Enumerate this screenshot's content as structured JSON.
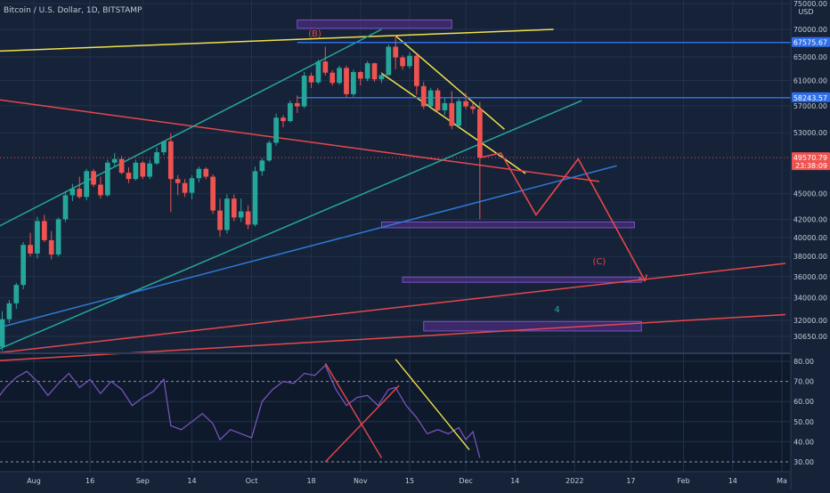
{
  "header": {
    "symbol_title": "Bitcoin / U.S. Dollar, 1D, BITSTAMP",
    "currency": "USD"
  },
  "colors": {
    "background": "#152238",
    "rsi_background": "#0e1a2c",
    "grid": "#22324d",
    "axis_text": "#c6cbd6",
    "candle_up": "#26a69a",
    "candle_down": "#ef5350",
    "rsi_line": "#7e57c2",
    "trend_yellow": "#f2e14a",
    "trend_red": "#e8474c",
    "trend_teal": "#26a69a",
    "trend_blue": "#2e79d6",
    "level_blue": "#2f6fe8",
    "zone_fill": "#5b2f8f",
    "zone_border": "#7a52c9"
  },
  "chart_data": {
    "type": "candlestick",
    "title": "Bitcoin / U.S. Dollar, 1D, BITSTAMP",
    "y_axis_ticks": [
      {
        "value": 75000,
        "label": "75000.00"
      },
      {
        "value": 70000,
        "label": "70000.00"
      },
      {
        "value": 65000,
        "label": "65000.00"
      },
      {
        "value": 61000,
        "label": "61000.00"
      },
      {
        "value": 57000,
        "label": "57000.00"
      },
      {
        "value": 53000,
        "label": "53000.00"
      },
      {
        "value": 45000,
        "label": "45000.00"
      },
      {
        "value": 42000,
        "label": "42000.00"
      },
      {
        "value": 40000,
        "label": "40000.00"
      },
      {
        "value": 38000,
        "label": "38000.00"
      },
      {
        "value": 36000,
        "label": "36000.00"
      },
      {
        "value": 34000,
        "label": "34000.00"
      },
      {
        "value": 32000,
        "label": "32000.00"
      },
      {
        "value": 30650,
        "label": "30650.00"
      }
    ],
    "x_axis_ticks": [
      "Aug",
      "16",
      "Sep",
      "14",
      "Oct",
      "18",
      "Nov",
      "15",
      "Dec",
      "14",
      "2022",
      "17",
      "Feb",
      "14",
      "Ma"
    ],
    "y_scale": "log",
    "price_labels": [
      {
        "value": 67575.67,
        "label": "67575.67",
        "color": "#2f6fe8"
      },
      {
        "value": 58243.57,
        "label": "58243.57",
        "color": "#2f6fe8"
      },
      {
        "value": 49570.79,
        "label": "49570.79",
        "sub": "23:38:09",
        "color": "#ef5350"
      }
    ],
    "horizontal_levels": [
      67575.67,
      58243.57
    ],
    "candles": [
      {
        "date": "2021-07-21",
        "o": 29800,
        "h": 32800,
        "l": 29500,
        "c": 32100
      },
      {
        "date": "2021-07-23",
        "o": 32100,
        "h": 33800,
        "l": 31800,
        "c": 33500
      },
      {
        "date": "2021-07-25",
        "o": 33500,
        "h": 35400,
        "l": 33000,
        "c": 35200
      },
      {
        "date": "2021-07-27",
        "o": 35200,
        "h": 39500,
        "l": 34800,
        "c": 39200
      },
      {
        "date": "2021-07-29",
        "o": 39200,
        "h": 40500,
        "l": 38000,
        "c": 38300
      },
      {
        "date": "2021-07-31",
        "o": 38300,
        "h": 42300,
        "l": 37800,
        "c": 41800
      },
      {
        "date": "2021-08-02",
        "o": 41800,
        "h": 42500,
        "l": 39500,
        "c": 39700
      },
      {
        "date": "2021-08-04",
        "o": 39700,
        "h": 40700,
        "l": 37700,
        "c": 38200
      },
      {
        "date": "2021-08-06",
        "o": 38200,
        "h": 42200,
        "l": 38000,
        "c": 42000
      },
      {
        "date": "2021-08-08",
        "o": 42000,
        "h": 45300,
        "l": 41700,
        "c": 44800
      },
      {
        "date": "2021-08-10",
        "o": 44800,
        "h": 46200,
        "l": 44100,
        "c": 45600
      },
      {
        "date": "2021-08-12",
        "o": 45600,
        "h": 47100,
        "l": 44400,
        "c": 44600
      },
      {
        "date": "2021-08-14",
        "o": 44600,
        "h": 48100,
        "l": 44200,
        "c": 47800
      },
      {
        "date": "2021-08-16",
        "o": 47800,
        "h": 48100,
        "l": 45800,
        "c": 46100
      },
      {
        "date": "2021-08-18",
        "o": 46100,
        "h": 47100,
        "l": 44400,
        "c": 44800
      },
      {
        "date": "2021-08-20",
        "o": 44800,
        "h": 49300,
        "l": 44600,
        "c": 48900
      },
      {
        "date": "2021-08-22",
        "o": 48900,
        "h": 50200,
        "l": 48300,
        "c": 49400
      },
      {
        "date": "2021-08-24",
        "o": 49400,
        "h": 49800,
        "l": 47400,
        "c": 47600
      },
      {
        "date": "2021-08-26",
        "o": 47600,
        "h": 48300,
        "l": 46300,
        "c": 46800
      },
      {
        "date": "2021-08-28",
        "o": 46800,
        "h": 49300,
        "l": 46600,
        "c": 48900
      },
      {
        "date": "2021-08-30",
        "o": 48900,
        "h": 49100,
        "l": 46800,
        "c": 47100
      },
      {
        "date": "2021-09-01",
        "o": 47100,
        "h": 49300,
        "l": 46800,
        "c": 48800
      },
      {
        "date": "2021-09-03",
        "o": 48800,
        "h": 51000,
        "l": 48600,
        "c": 50300
      },
      {
        "date": "2021-09-05",
        "o": 50300,
        "h": 51900,
        "l": 49900,
        "c": 51800
      },
      {
        "date": "2021-09-07",
        "o": 51800,
        "h": 52900,
        "l": 42800,
        "c": 46800
      },
      {
        "date": "2021-09-09",
        "o": 46800,
        "h": 47300,
        "l": 44800,
        "c": 46300
      },
      {
        "date": "2021-09-11",
        "o": 46300,
        "h": 46800,
        "l": 44600,
        "c": 45100
      },
      {
        "date": "2021-09-13",
        "o": 45100,
        "h": 47300,
        "l": 44300,
        "c": 46900
      },
      {
        "date": "2021-09-15",
        "o": 46900,
        "h": 48400,
        "l": 46400,
        "c": 48100
      },
      {
        "date": "2021-09-17",
        "o": 48100,
        "h": 48300,
        "l": 46800,
        "c": 47100
      },
      {
        "date": "2021-09-19",
        "o": 47100,
        "h": 47400,
        "l": 42600,
        "c": 43000
      },
      {
        "date": "2021-09-21",
        "o": 43000,
        "h": 44400,
        "l": 40100,
        "c": 40800
      },
      {
        "date": "2021-09-23",
        "o": 40800,
        "h": 44900,
        "l": 40400,
        "c": 44400
      },
      {
        "date": "2021-09-25",
        "o": 44400,
        "h": 44900,
        "l": 41800,
        "c": 42200
      },
      {
        "date": "2021-09-27",
        "o": 42200,
        "h": 44400,
        "l": 41700,
        "c": 42900
      },
      {
        "date": "2021-09-29",
        "o": 42900,
        "h": 43600,
        "l": 40900,
        "c": 41400
      },
      {
        "date": "2021-10-01",
        "o": 41400,
        "h": 48400,
        "l": 41200,
        "c": 47800
      },
      {
        "date": "2021-10-03",
        "o": 47800,
        "h": 49500,
        "l": 47200,
        "c": 49200
      },
      {
        "date": "2021-10-05",
        "o": 49200,
        "h": 51900,
        "l": 49000,
        "c": 51600
      },
      {
        "date": "2021-10-07",
        "o": 51600,
        "h": 55800,
        "l": 51200,
        "c": 55200
      },
      {
        "date": "2021-10-09",
        "o": 55200,
        "h": 55600,
        "l": 53800,
        "c": 54700
      },
      {
        "date": "2021-10-11",
        "o": 54700,
        "h": 57800,
        "l": 54500,
        "c": 57400
      },
      {
        "date": "2021-10-13",
        "o": 57400,
        "h": 58600,
        "l": 55900,
        "c": 56900
      },
      {
        "date": "2021-10-15",
        "o": 56900,
        "h": 62400,
        "l": 56600,
        "c": 61800
      },
      {
        "date": "2021-10-17",
        "o": 61800,
        "h": 62300,
        "l": 59800,
        "c": 60700
      },
      {
        "date": "2021-10-19",
        "o": 60700,
        "h": 64500,
        "l": 60400,
        "c": 64200
      },
      {
        "date": "2021-10-21",
        "o": 64200,
        "h": 66800,
        "l": 61800,
        "c": 62300
      },
      {
        "date": "2021-10-23",
        "o": 62300,
        "h": 62700,
        "l": 60200,
        "c": 60600
      },
      {
        "date": "2021-10-25",
        "o": 60600,
        "h": 63500,
        "l": 60300,
        "c": 63100
      },
      {
        "date": "2021-10-27",
        "o": 63100,
        "h": 63500,
        "l": 58300,
        "c": 58800
      },
      {
        "date": "2021-10-29",
        "o": 58800,
        "h": 62800,
        "l": 58400,
        "c": 62400
      },
      {
        "date": "2021-10-31",
        "o": 62400,
        "h": 62600,
        "l": 60200,
        "c": 61300
      },
      {
        "date": "2021-11-02",
        "o": 61300,
        "h": 64300,
        "l": 60900,
        "c": 63900
      },
      {
        "date": "2021-11-04",
        "o": 63900,
        "h": 64000,
        "l": 60800,
        "c": 61200
      },
      {
        "date": "2021-11-06",
        "o": 61200,
        "h": 62400,
        "l": 60600,
        "c": 61900
      },
      {
        "date": "2021-11-08",
        "o": 61900,
        "h": 67200,
        "l": 61800,
        "c": 66800
      },
      {
        "date": "2021-11-10",
        "o": 66800,
        "h": 69000,
        "l": 62900,
        "c": 64900
      },
      {
        "date": "2021-11-12",
        "o": 64900,
        "h": 65300,
        "l": 62800,
        "c": 63400
      },
      {
        "date": "2021-11-14",
        "o": 63400,
        "h": 65800,
        "l": 63000,
        "c": 65200
      },
      {
        "date": "2021-11-16",
        "o": 65200,
        "h": 65500,
        "l": 58700,
        "c": 60100
      },
      {
        "date": "2021-11-18",
        "o": 60100,
        "h": 60800,
        "l": 56500,
        "c": 56900
      },
      {
        "date": "2021-11-20",
        "o": 56900,
        "h": 59800,
        "l": 56800,
        "c": 59400
      },
      {
        "date": "2021-11-22",
        "o": 59400,
        "h": 59800,
        "l": 55900,
        "c": 56300
      },
      {
        "date": "2021-11-24",
        "o": 56300,
        "h": 58200,
        "l": 55600,
        "c": 57400
      },
      {
        "date": "2021-11-26",
        "o": 57400,
        "h": 59300,
        "l": 53500,
        "c": 54000
      },
      {
        "date": "2021-11-28",
        "o": 54000,
        "h": 58100,
        "l": 53800,
        "c": 57700
      },
      {
        "date": "2021-11-30",
        "o": 57700,
        "h": 59000,
        "l": 56500,
        "c": 56900
      },
      {
        "date": "2021-12-02",
        "o": 56900,
        "h": 57400,
        "l": 55800,
        "c": 56500
      },
      {
        "date": "2021-12-04",
        "o": 56500,
        "h": 57600,
        "l": 42000,
        "c": 49570.79
      }
    ],
    "overlays": {
      "trend_lines": [
        {
          "id": "yellow-top",
          "color": "#f2e14a",
          "from": [
            "2021-07-19",
            66000
          ],
          "to": [
            "2021-12-25",
            70000
          ]
        },
        {
          "id": "yellow-channel-upper",
          "color": "#f2e14a",
          "from": [
            "2021-11-10",
            68800
          ],
          "to": [
            "2021-12-11",
            53500
          ]
        },
        {
          "id": "yellow-channel-lower",
          "color": "#f2e14a",
          "from": [
            "2021-11-06",
            62200
          ],
          "to": [
            "2021-12-17",
            47500
          ]
        },
        {
          "id": "red-downtrend",
          "color": "#e8474c",
          "from": [
            "2021-07-19",
            58000
          ],
          "to": [
            "2022-01-07",
            46500
          ]
        },
        {
          "id": "red-long-upper",
          "color": "#e8474c",
          "from": [
            "2021-07-19",
            29300
          ],
          "to": [
            "2022-03-01",
            37300
          ]
        },
        {
          "id": "red-long-lower",
          "color": "#e8474c",
          "from": [
            "2021-07-19",
            28700
          ],
          "to": [
            "2022-03-01",
            32500
          ]
        },
        {
          "id": "teal-upper",
          "color": "#26a69a",
          "from": [
            "2021-07-19",
            41000
          ],
          "to": [
            "2021-11-06",
            70000
          ]
        },
        {
          "id": "teal-lower",
          "color": "#26a69a",
          "from": [
            "2021-07-19",
            29500
          ],
          "to": [
            "2022-01-02",
            57800
          ]
        },
        {
          "id": "blue-trend",
          "color": "#2e79d6",
          "from": [
            "2021-07-19",
            31300
          ],
          "to": [
            "2022-01-12",
            48500
          ]
        }
      ],
      "projection_path": {
        "color": "#e8474c",
        "points": [
          [
            "2021-12-04",
            49570.79
          ],
          [
            "2021-12-10",
            50200
          ],
          [
            "2021-12-20",
            42500
          ],
          [
            "2022-01-01",
            49400
          ],
          [
            "2022-01-20",
            35600
          ]
        ]
      },
      "zones": [
        {
          "id": "zone-top",
          "from_date": "2021-10-13",
          "to_date": "2021-11-26",
          "top": 71800,
          "bottom": 70200
        },
        {
          "id": "zone-41k",
          "from_date": "2021-11-06",
          "to_date": "2022-01-17",
          "top": 41700,
          "bottom": 41050
        },
        {
          "id": "zone-35k",
          "from_date": "2021-11-12",
          "to_date": "2022-01-19",
          "top": 35950,
          "bottom": 35450
        },
        {
          "id": "zone-31k",
          "from_date": "2021-11-18",
          "to_date": "2022-01-19",
          "top": 31900,
          "bottom": 31100
        }
      ],
      "annotations": [
        {
          "text": "(B)",
          "date": "2021-10-18",
          "price": 68700,
          "color": "#e8474c"
        },
        {
          "text": "(C)",
          "date": "2022-01-07",
          "price": 37200,
          "color": "#e8474c"
        },
        {
          "text": "4",
          "date": "2021-12-26",
          "price": 32700,
          "color": "#26a69a"
        }
      ]
    },
    "rsi": {
      "y_axis_ticks": [
        80,
        70,
        60,
        50,
        40,
        30
      ],
      "y_tick_labels": [
        "80.00",
        "70.00",
        "60.00",
        "50.00",
        "40.00",
        "30.00"
      ],
      "dashed_levels": [
        70,
        30
      ],
      "values": [
        {
          "date": "2021-07-19",
          "v": 60
        },
        {
          "date": "2021-07-22",
          "v": 67
        },
        {
          "date": "2021-07-25",
          "v": 72
        },
        {
          "date": "2021-07-28",
          "v": 75
        },
        {
          "date": "2021-07-31",
          "v": 70
        },
        {
          "date": "2021-08-03",
          "v": 63
        },
        {
          "date": "2021-08-06",
          "v": 69
        },
        {
          "date": "2021-08-09",
          "v": 74
        },
        {
          "date": "2021-08-12",
          "v": 67
        },
        {
          "date": "2021-08-15",
          "v": 71
        },
        {
          "date": "2021-08-18",
          "v": 64
        },
        {
          "date": "2021-08-21",
          "v": 70
        },
        {
          "date": "2021-08-24",
          "v": 66
        },
        {
          "date": "2021-08-27",
          "v": 58
        },
        {
          "date": "2021-08-30",
          "v": 62
        },
        {
          "date": "2021-09-02",
          "v": 65
        },
        {
          "date": "2021-09-05",
          "v": 71
        },
        {
          "date": "2021-09-07",
          "v": 48
        },
        {
          "date": "2021-09-10",
          "v": 46
        },
        {
          "date": "2021-09-13",
          "v": 50
        },
        {
          "date": "2021-09-16",
          "v": 54
        },
        {
          "date": "2021-09-19",
          "v": 49
        },
        {
          "date": "2021-09-21",
          "v": 41
        },
        {
          "date": "2021-09-24",
          "v": 46
        },
        {
          "date": "2021-09-27",
          "v": 44
        },
        {
          "date": "2021-09-30",
          "v": 42
        },
        {
          "date": "2021-10-03",
          "v": 60
        },
        {
          "date": "2021-10-06",
          "v": 66
        },
        {
          "date": "2021-10-09",
          "v": 70
        },
        {
          "date": "2021-10-12",
          "v": 69
        },
        {
          "date": "2021-10-15",
          "v": 74
        },
        {
          "date": "2021-10-18",
          "v": 73
        },
        {
          "date": "2021-10-21",
          "v": 78
        },
        {
          "date": "2021-10-24",
          "v": 66
        },
        {
          "date": "2021-10-27",
          "v": 58
        },
        {
          "date": "2021-10-30",
          "v": 62
        },
        {
          "date": "2021-11-02",
          "v": 63
        },
        {
          "date": "2021-11-05",
          "v": 58
        },
        {
          "date": "2021-11-08",
          "v": 66
        },
        {
          "date": "2021-11-10",
          "v": 67
        },
        {
          "date": "2021-11-13",
          "v": 58
        },
        {
          "date": "2021-11-16",
          "v": 52
        },
        {
          "date": "2021-11-19",
          "v": 44
        },
        {
          "date": "2021-11-22",
          "v": 46
        },
        {
          "date": "2021-11-25",
          "v": 44
        },
        {
          "date": "2021-11-28",
          "v": 47
        },
        {
          "date": "2021-11-30",
          "v": 41
        },
        {
          "date": "2021-12-02",
          "v": 45
        },
        {
          "date": "2021-12-04",
          "v": 32
        }
      ],
      "drawn_lines": [
        {
          "color": "#e8474c",
          "from": [
            "2021-10-21",
            79
          ],
          "to": [
            "2021-11-06",
            32
          ]
        },
        {
          "color": "#e8474c",
          "from": [
            "2021-10-21",
            30
          ],
          "to": [
            "2021-11-11",
            68
          ]
        },
        {
          "color": "#f2e14a",
          "from": [
            "2021-11-10",
            81
          ],
          "to": [
            "2021-12-01",
            36
          ]
        }
      ]
    }
  }
}
